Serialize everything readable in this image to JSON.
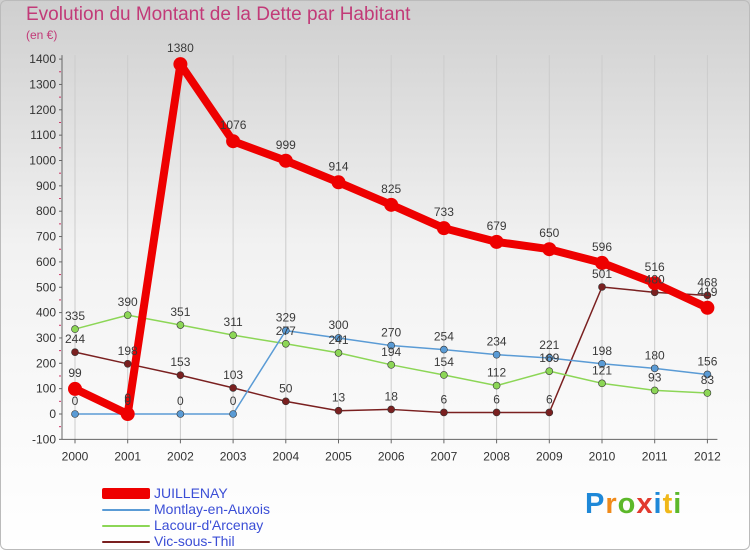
{
  "header": {
    "title": "Evolution du Montant de la Dette par Habitant",
    "subtitle": "(en €)"
  },
  "brand": {
    "letters": [
      "P",
      "r",
      "o",
      "x",
      "i",
      "t",
      "i"
    ],
    "colors": [
      "#1e88d8",
      "#f08a1a",
      "#5cb82a",
      "#e23a2e",
      "#1e88d8",
      "#f0b81a",
      "#5cb82a"
    ]
  },
  "chart_data": {
    "type": "line",
    "title": "Evolution du Montant de la Dette par Habitant",
    "ylabel": "(en €)",
    "xlabel": "",
    "x": [
      "2000",
      "2001",
      "2002",
      "2003",
      "2004",
      "2005",
      "2006",
      "2007",
      "2008",
      "2009",
      "2010",
      "2011",
      "2012"
    ],
    "ylim": [
      -100,
      1400
    ],
    "yticks": [
      -100,
      0,
      100,
      200,
      300,
      400,
      500,
      600,
      700,
      800,
      900,
      1000,
      1100,
      1200,
      1300,
      1400
    ],
    "grid": "vertical",
    "legend": "bottom-left",
    "series": [
      {
        "name": "JUILLENAY",
        "color": "#ee0000",
        "values": [
          99,
          0,
          1380,
          1076,
          999,
          914,
          825,
          733,
          679,
          650,
          596,
          516,
          419
        ]
      },
      {
        "name": "Montlay-en-Auxois",
        "color": "#5a9bd5",
        "values": [
          0,
          0,
          0,
          0,
          329,
          300,
          270,
          254,
          234,
          221,
          198,
          180,
          156
        ]
      },
      {
        "name": "Lacour-d'Arcenay",
        "color": "#8cd656",
        "values": [
          335,
          390,
          351,
          311,
          277,
          241,
          194,
          154,
          112,
          169,
          121,
          93,
          83
        ]
      },
      {
        "name": "Vic-sous-Thil",
        "color": "#7a2020",
        "values": [
          244,
          198,
          153,
          103,
          50,
          13,
          18,
          6,
          6,
          6,
          501,
          480,
          468
        ]
      }
    ]
  }
}
